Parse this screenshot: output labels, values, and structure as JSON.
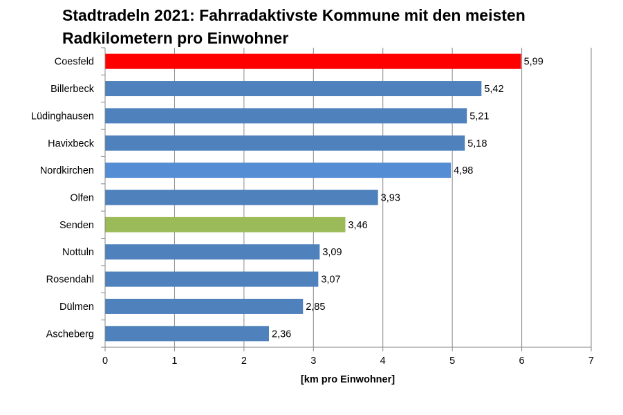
{
  "chart_data": {
    "type": "bar",
    "orientation": "horizontal",
    "title_lines": [
      "Stadtradeln 2021: Fahrradaktivste Kommune mit den meisten",
      "Radkilometern pro Einwohner"
    ],
    "xlabel": "[km pro Einwohner]",
    "ylabel": "",
    "categories": [
      "Coesfeld",
      "Billerbeck",
      "Lüdinghausen",
      "Havixbeck",
      "Nordkirchen",
      "Olfen",
      "Senden",
      "Nottuln",
      "Rosendahl",
      "Dülmen",
      "Ascheberg"
    ],
    "values": [
      5.99,
      5.42,
      5.21,
      5.18,
      4.98,
      3.93,
      3.46,
      3.09,
      3.07,
      2.85,
      2.36
    ],
    "value_labels": [
      "5,99",
      "5,42",
      "5,21",
      "5,18",
      "4,98",
      "3,93",
      "3,46",
      "3,09",
      "3,07",
      "2,85",
      "2,36"
    ],
    "bar_colors": [
      "#ff0000",
      "#4f81bd",
      "#4f81bd",
      "#4f81bd",
      "#548dd4",
      "#4f81bd",
      "#9bbb59",
      "#4f81bd",
      "#4f81bd",
      "#4f81bd",
      "#4f81bd"
    ],
    "xlim": [
      0,
      7
    ],
    "xticks": [
      0,
      1,
      2,
      3,
      4,
      5,
      6,
      7
    ],
    "grid": "vertical",
    "legend": "none"
  }
}
